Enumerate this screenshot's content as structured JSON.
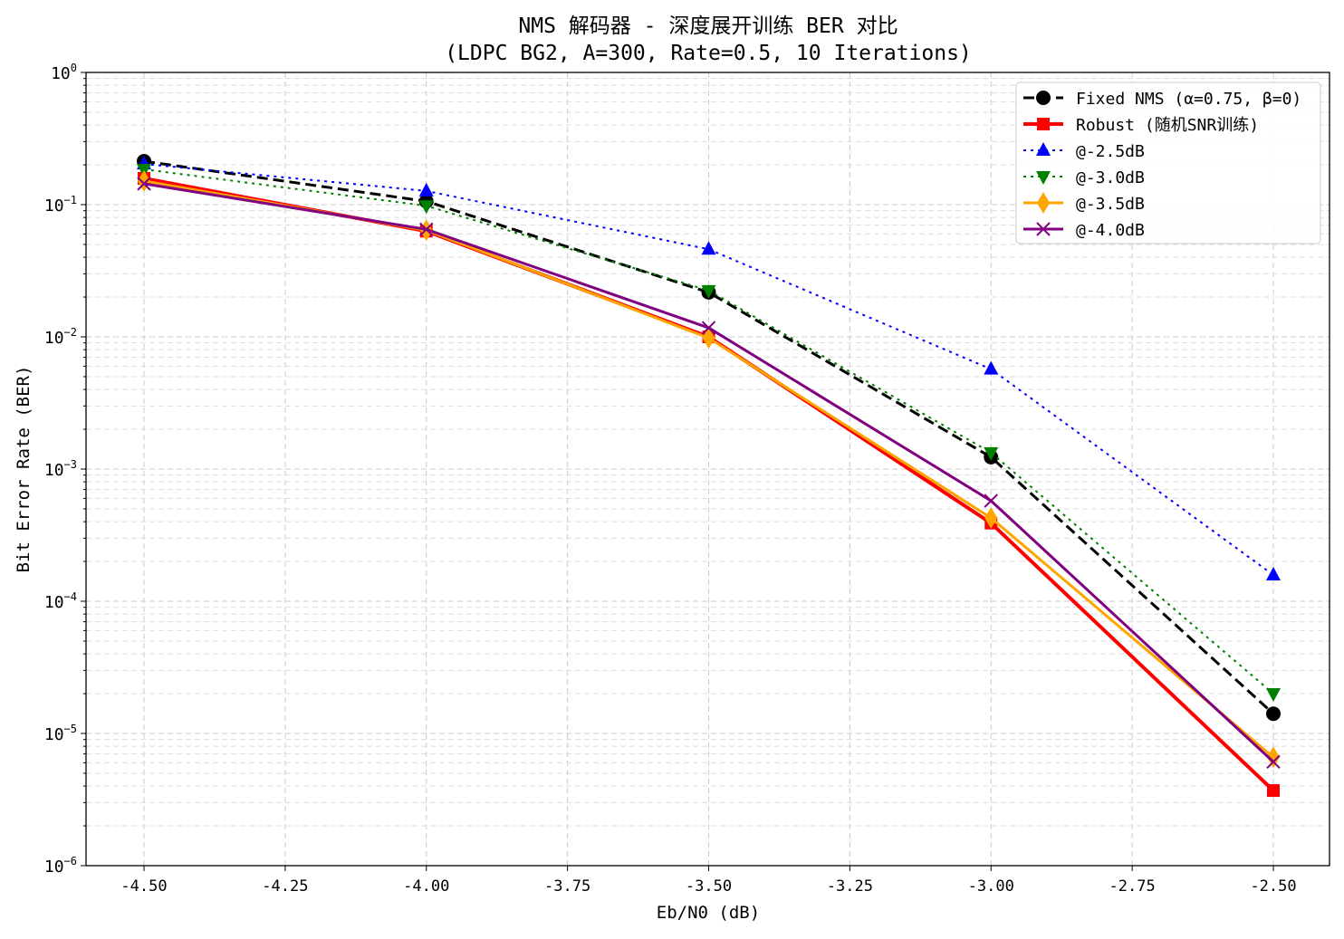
{
  "chart_data": {
    "type": "line",
    "title": "NMS 解码器 - 深度展开训练 BER 对比",
    "subtitle": "(LDPC BG2, A=300, Rate=0.5, 10 Iterations)",
    "xlabel": "Eb/N0 (dB)",
    "ylabel": "Bit Error Rate (BER)",
    "x": [
      -4.5,
      -4.0,
      -3.5,
      -3.0,
      -2.5
    ],
    "xlim": [
      -4.6,
      -2.4
    ],
    "ylim": [
      1e-06,
      1
    ],
    "yscale": "log",
    "xticks": [
      "-4.50",
      "-4.25",
      "-4.00",
      "-3.75",
      "-3.50",
      "-3.25",
      "-3.00",
      "-2.75",
      "-2.50"
    ],
    "xtick_values": [
      -4.5,
      -4.25,
      -4.0,
      -3.75,
      -3.5,
      -3.25,
      -3.0,
      -2.75,
      -2.5
    ],
    "yticks": [
      {
        "base": "10",
        "exp": "0",
        "value": 1
      },
      {
        "base": "10",
        "exp": "−1",
        "value": 0.1
      },
      {
        "base": "10",
        "exp": "−2",
        "value": 0.01
      },
      {
        "base": "10",
        "exp": "−3",
        "value": 0.001
      },
      {
        "base": "10",
        "exp": "−4",
        "value": 0.0001
      },
      {
        "base": "10",
        "exp": "−5",
        "value": 1e-05
      },
      {
        "base": "10",
        "exp": "−6",
        "value": 1e-06
      }
    ],
    "grid": true,
    "legend_position": "top-right",
    "series": [
      {
        "name": "Fixed NMS (α=0.75, β=0)",
        "color": "#000000",
        "dash": "dashed",
        "marker": "circle",
        "values": [
          0.213,
          0.106,
          0.0217,
          0.00123,
          1.41e-05
        ]
      },
      {
        "name": "Robust (随机SNR训练)",
        "color": "#ff0000",
        "dash": "solid",
        "marker": "square",
        "values": [
          0.158,
          0.063,
          0.01,
          0.00039,
          3.7e-06
        ]
      },
      {
        "name": "@-2.5dB",
        "color": "#0000ff",
        "dash": "dotted",
        "marker": "triangle-up",
        "values": [
          0.203,
          0.127,
          0.046,
          0.0057,
          0.000158
        ]
      },
      {
        "name": "@-3.0dB",
        "color": "#008000",
        "dash": "dotted",
        "marker": "triangle-down",
        "values": [
          0.185,
          0.098,
          0.0224,
          0.00133,
          2e-05
        ]
      },
      {
        "name": "@-3.5dB",
        "color": "#ffa500",
        "dash": "solid",
        "marker": "diamond",
        "values": [
          0.151,
          0.064,
          0.0098,
          0.000427,
          6.6e-06
        ]
      },
      {
        "name": "@-4.0dB",
        "color": "#800080",
        "dash": "solid",
        "marker": "x",
        "values": [
          0.144,
          0.065,
          0.0117,
          0.000575,
          6.1e-06
        ]
      }
    ]
  }
}
